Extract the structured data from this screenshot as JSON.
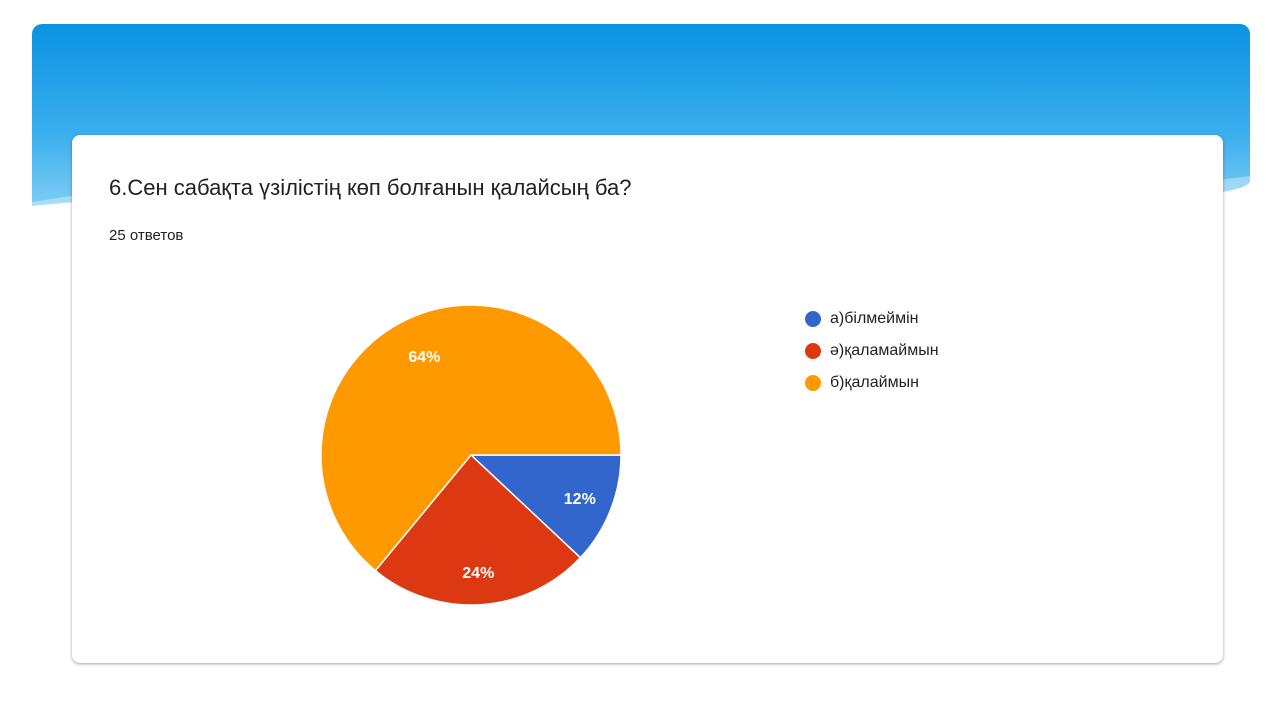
{
  "card": {
    "question": "6.Сен сабақта үзілістің көп болғанын қалайсың ба?",
    "responses": "25 ответов"
  },
  "colors": {
    "banner_top": "#0b93e1",
    "banner_bottom": "#4fb8f2"
  },
  "chart_data": {
    "type": "pie",
    "title": "6.Сен сабақта үзілістің көп болғанын қалайсың ба?",
    "legend_position": "right",
    "slices": [
      {
        "label": "а)білмеймін",
        "value": 12,
        "display": "12%",
        "color": "#3366cc"
      },
      {
        "label": "ә)қаламаймын",
        "value": 24,
        "display": "24%",
        "color": "#dc3912"
      },
      {
        "label": "б)қалаймын",
        "value": 64,
        "display": "64%",
        "color": "#ff9900"
      }
    ]
  }
}
